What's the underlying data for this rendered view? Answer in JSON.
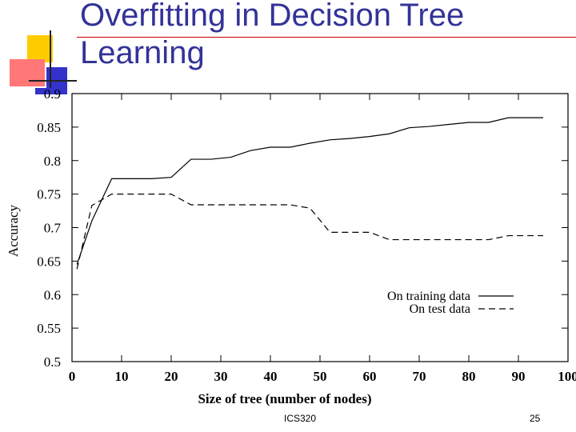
{
  "slide": {
    "title_line1": "Overfitting in Decision Tree",
    "title_line2": "Learning",
    "footer_left": "ICS320",
    "footer_right": "25"
  },
  "colors": {
    "title": "#333399",
    "rule": "#cc0000",
    "deco_yellow": "#ffcc00",
    "deco_red": "#ff6666",
    "deco_blue": "#3333cc"
  },
  "chart_data": {
    "type": "line",
    "title": "",
    "xlabel": "Size of tree (number of nodes)",
    "ylabel": "Accuracy",
    "xlim": [
      0,
      100
    ],
    "ylim": [
      0.5,
      0.9
    ],
    "x_ticks": [
      "0",
      "10",
      "20",
      "30",
      "40",
      "50",
      "60",
      "70",
      "80",
      "90",
      "100"
    ],
    "y_ticks": [
      "0.5",
      "0.55",
      "0.6",
      "0.65",
      "0.7",
      "0.75",
      "0.8",
      "0.85",
      "0.9"
    ],
    "grid": false,
    "legend": "bottom-right",
    "series": [
      {
        "name": "On training data",
        "style": "solid",
        "x": [
          1,
          4,
          8,
          12,
          16,
          20,
          24,
          28,
          32,
          36,
          40,
          44,
          48,
          52,
          56,
          60,
          64,
          68,
          72,
          76,
          80,
          84,
          88,
          92,
          95
        ],
        "y": [
          0.645,
          0.71,
          0.773,
          0.773,
          0.773,
          0.775,
          0.802,
          0.802,
          0.805,
          0.815,
          0.82,
          0.82,
          0.826,
          0.831,
          0.833,
          0.836,
          0.84,
          0.849,
          0.851,
          0.854,
          0.857,
          0.857,
          0.864,
          0.864,
          0.864
        ]
      },
      {
        "name": "On test data",
        "style": "dashed",
        "x": [
          1,
          4,
          8,
          12,
          16,
          20,
          24,
          28,
          32,
          36,
          40,
          44,
          48,
          52,
          56,
          60,
          64,
          68,
          72,
          76,
          80,
          84,
          88,
          92,
          95
        ],
        "y": [
          0.638,
          0.733,
          0.75,
          0.75,
          0.75,
          0.75,
          0.734,
          0.734,
          0.734,
          0.734,
          0.734,
          0.734,
          0.729,
          0.693,
          0.693,
          0.693,
          0.682,
          0.682,
          0.682,
          0.682,
          0.682,
          0.682,
          0.688,
          0.688,
          0.688
        ]
      }
    ]
  }
}
